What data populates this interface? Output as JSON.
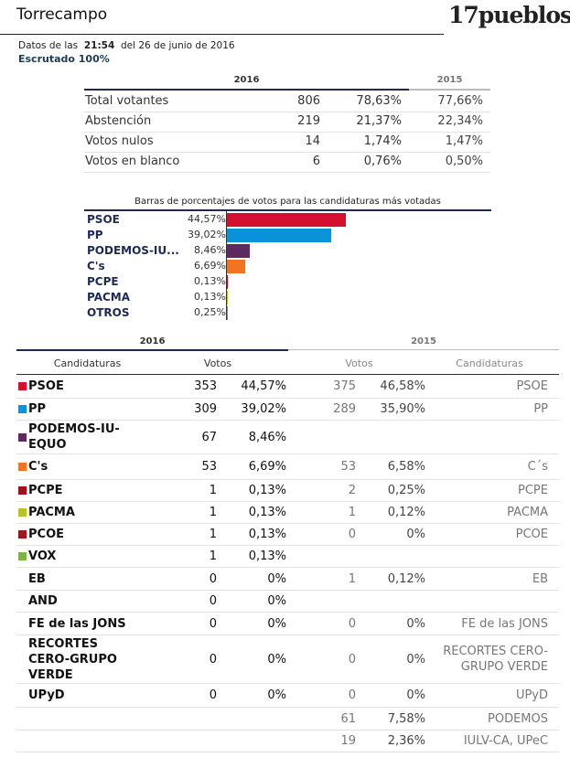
{
  "header": {
    "place": "Torrecampo",
    "logo": "17pueblos",
    "data_prefix": "Datos de las",
    "time": "21:54",
    "date": "del 26 de junio de 2016",
    "status": "Escrutado 100%"
  },
  "summary": {
    "year_current": "2016",
    "year_previous": "2015",
    "rows": [
      [
        "Total votantes",
        "806",
        "78,63%",
        "77,66%"
      ],
      [
        "Abstención",
        "219",
        "21,37%",
        "22,34%"
      ],
      [
        "Votos nulos",
        "14",
        "1,74%",
        "1,47%"
      ],
      [
        "Votos en blanco",
        "6",
        "0,76%",
        "0,50%"
      ]
    ]
  },
  "chart_data": {
    "type": "bar",
    "orientation": "horizontal",
    "title": "Barras de porcentajes de votos para las candidaturas más votadas",
    "categories": [
      "PSOE",
      "PP",
      "PODEMOS-IU...",
      "C's",
      "PCPE",
      "PACMA",
      "OTROS"
    ],
    "values": [
      44.57,
      39.02,
      8.46,
      6.69,
      0.13,
      0.13,
      0.25
    ],
    "value_labels": [
      "44,57%",
      "39,02%",
      "8,46%",
      "6,69%",
      "0,13%",
      "0,13%",
      "0,25%"
    ],
    "colors": [
      "#d4102e",
      "#0b93d9",
      "#5c2a5f",
      "#f07422",
      "#a3101c",
      "#b8c224",
      "#888888"
    ]
  },
  "results": {
    "year_current": "2016",
    "year_previous": "2015",
    "columns": [
      "Candidaturas",
      "Votos",
      "Votos",
      "Candidaturas"
    ],
    "rows": [
      {
        "color": "#d4102e",
        "name": "PSOE",
        "votes": "353",
        "pct": "44,57%",
        "votes_prev": "375",
        "pct_prev": "46,58%",
        "name_prev": "PSOE"
      },
      {
        "color": "#0b93d9",
        "name": "PP",
        "votes": "309",
        "pct": "39,02%",
        "votes_prev": "289",
        "pct_prev": "35,90%",
        "name_prev": "PP"
      },
      {
        "color": "#5c2a5f",
        "name": "PODEMOS-IU-EQUO",
        "votes": "67",
        "pct": "8,46%",
        "votes_prev": null,
        "pct_prev": null,
        "name_prev": null
      },
      {
        "color": "#f07422",
        "name": "C's",
        "votes": "53",
        "pct": "6,69%",
        "votes_prev": "53",
        "pct_prev": "6,58%",
        "name_prev": "C´s"
      },
      {
        "color": "#a3101c",
        "name": "PCPE",
        "votes": "1",
        "pct": "0,13%",
        "votes_prev": "2",
        "pct_prev": "0,25%",
        "name_prev": "PCPE"
      },
      {
        "color": "#b8c224",
        "name": "PACMA",
        "votes": "1",
        "pct": "0,13%",
        "votes_prev": "1",
        "pct_prev": "0,12%",
        "name_prev": "PACMA"
      },
      {
        "color": "#9c1a1a",
        "name": "PCOE",
        "votes": "1",
        "pct": "0,13%",
        "votes_prev": "0",
        "pct_prev": "0%",
        "name_prev": "PCOE"
      },
      {
        "color": "#7db443",
        "name": "VOX",
        "votes": "1",
        "pct": "0,13%",
        "votes_prev": null,
        "pct_prev": null,
        "name_prev": null
      },
      {
        "color": null,
        "name": "EB",
        "votes": "0",
        "pct": "0%",
        "votes_prev": "1",
        "pct_prev": "0,12%",
        "name_prev": "EB"
      },
      {
        "color": null,
        "name": "AND",
        "votes": "0",
        "pct": "0%",
        "votes_prev": null,
        "pct_prev": null,
        "name_prev": null
      },
      {
        "color": null,
        "name": "FE de las JONS",
        "votes": "0",
        "pct": "0%",
        "votes_prev": "0",
        "pct_prev": "0%",
        "name_prev": "FE de las JONS"
      },
      {
        "color": null,
        "name": "RECORTES CERO-GRUPO VERDE",
        "votes": "0",
        "pct": "0%",
        "votes_prev": "0",
        "pct_prev": "0%",
        "name_prev": "RECORTES CERO-GRUPO VERDE"
      },
      {
        "color": null,
        "name": "UPyD",
        "votes": "0",
        "pct": "0%",
        "votes_prev": "0",
        "pct_prev": "0%",
        "name_prev": "UPyD"
      },
      {
        "color": null,
        "name": null,
        "votes": null,
        "pct": null,
        "votes_prev": "61",
        "pct_prev": "7,58%",
        "name_prev": "PODEMOS"
      },
      {
        "color": null,
        "name": null,
        "votes": null,
        "pct": null,
        "votes_prev": "19",
        "pct_prev": "2,36%",
        "name_prev": "IULV-CA, UPeC"
      }
    ]
  }
}
